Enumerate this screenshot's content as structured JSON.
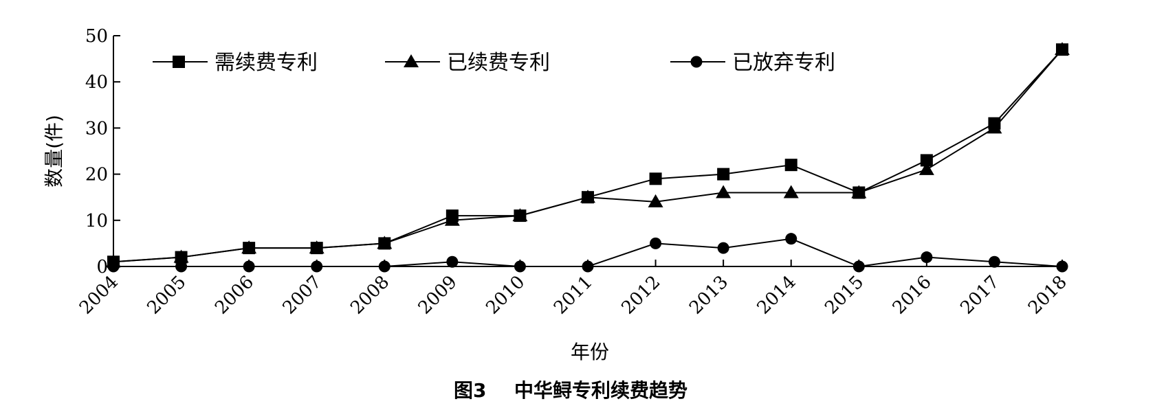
{
  "chart_data": {
    "type": "line",
    "x": [
      "2004",
      "2005",
      "2006",
      "2007",
      "2008",
      "2009",
      "2010",
      "2011",
      "2012",
      "2013",
      "2014",
      "2015",
      "2016",
      "2017",
      "2018"
    ],
    "xlabel": "年份",
    "ylabel": "数量(件)",
    "ylim": [
      0,
      50
    ],
    "yticks": [
      0,
      10,
      20,
      30,
      40,
      50
    ],
    "grid": false,
    "legend_position": "top",
    "caption": {
      "label": "图3",
      "title": "中华鲟专利续费趋势"
    },
    "series": [
      {
        "name": "需续费专利",
        "marker": "square",
        "color": "#000000",
        "values": [
          1,
          2,
          4,
          4,
          5,
          11,
          11,
          15,
          19,
          20,
          22,
          16,
          23,
          31,
          47
        ]
      },
      {
        "name": "已续费专利",
        "marker": "triangle",
        "color": "#000000",
        "values": [
          1,
          2,
          4,
          4,
          5,
          10,
          11,
          15,
          14,
          16,
          16,
          16,
          21,
          30,
          47
        ]
      },
      {
        "name": "已放弃专利",
        "marker": "circle",
        "color": "#000000",
        "values": [
          0,
          0,
          0,
          0,
          0,
          1,
          0,
          0,
          5,
          4,
          6,
          0,
          2,
          1,
          0
        ]
      }
    ]
  }
}
